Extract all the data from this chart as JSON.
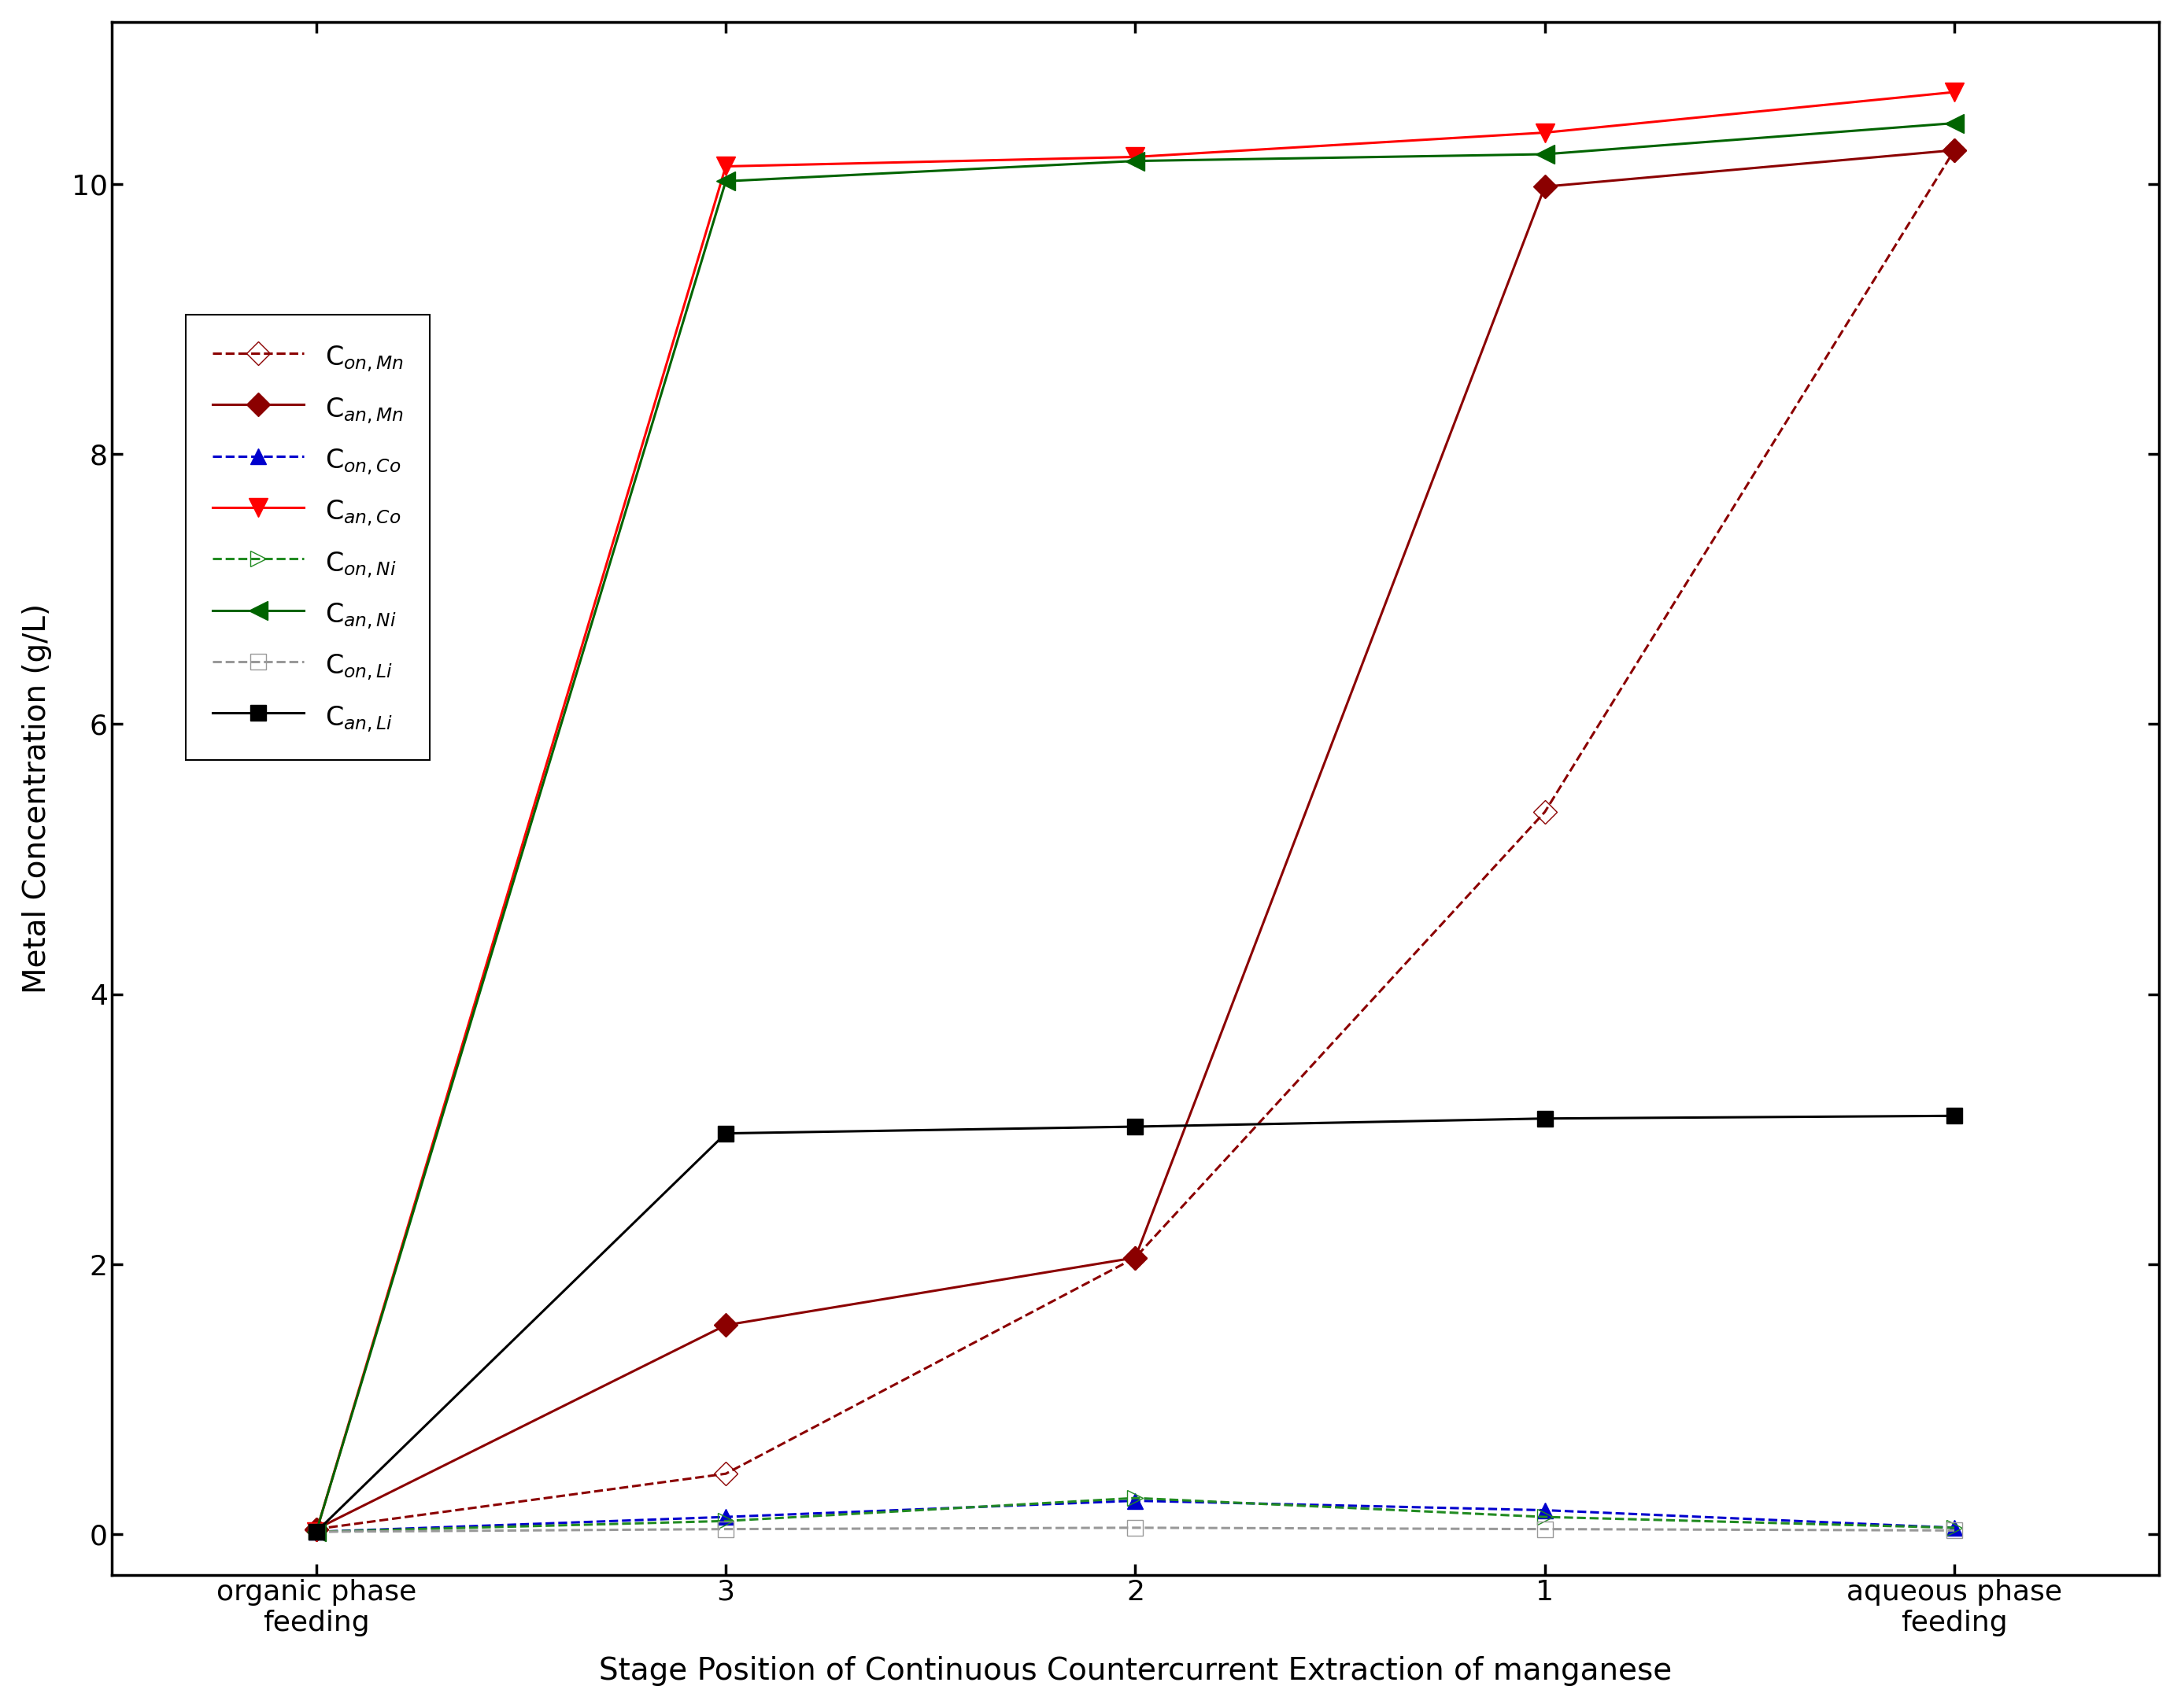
{
  "x_positions": [
    0,
    1,
    2,
    3,
    4
  ],
  "x_labels": [
    "organic phase\nfeeding",
    "3",
    "2",
    "1",
    "aqueous phase\nfeeding"
  ],
  "series": [
    {
      "key": "Con_Mn",
      "label": "C$_{on,Mn}$",
      "color": "#8B0000",
      "linestyle": "dashed",
      "marker": "D",
      "markerfacecolor": "none",
      "markeredgecolor": "#8B0000",
      "markersize": 15,
      "linewidth": 2.2,
      "values": [
        0.04,
        0.45,
        2.05,
        5.35,
        10.25
      ]
    },
    {
      "key": "Can_Mn",
      "label": "C$_{an,Mn}$",
      "color": "#8B0000",
      "linestyle": "solid",
      "marker": "D",
      "markerfacecolor": "#8B0000",
      "markeredgecolor": "#8B0000",
      "markersize": 15,
      "linewidth": 2.2,
      "values": [
        0.04,
        1.55,
        2.05,
        9.98,
        10.25
      ]
    },
    {
      "key": "Con_Co",
      "label": "C$_{on,Co}$",
      "color": "#0000CD",
      "linestyle": "dashed",
      "marker": "^",
      "markerfacecolor": "#0000CD",
      "markeredgecolor": "#0000CD",
      "markersize": 15,
      "linewidth": 2.2,
      "values": [
        0.02,
        0.13,
        0.25,
        0.18,
        0.05
      ]
    },
    {
      "key": "Can_Co",
      "label": "C$_{an,Co}$",
      "color": "#FF0000",
      "linestyle": "solid",
      "marker": "v",
      "markerfacecolor": "#FF0000",
      "markeredgecolor": "#FF0000",
      "markersize": 17,
      "linewidth": 2.2,
      "values": [
        0.02,
        10.13,
        10.2,
        10.38,
        10.68
      ]
    },
    {
      "key": "Con_Ni",
      "label": "C$_{on,Ni}$",
      "color": "#228B22",
      "linestyle": "dashed",
      "marker": ">",
      "markerfacecolor": "none",
      "markeredgecolor": "#228B22",
      "markersize": 15,
      "linewidth": 2.2,
      "values": [
        0.02,
        0.1,
        0.27,
        0.13,
        0.05
      ]
    },
    {
      "key": "Can_Ni",
      "label": "C$_{an,Ni}$",
      "color": "#006400",
      "linestyle": "solid",
      "marker": "<",
      "markerfacecolor": "#006400",
      "markeredgecolor": "#006400",
      "markersize": 17,
      "linewidth": 2.2,
      "values": [
        0.02,
        10.02,
        10.17,
        10.22,
        10.45
      ]
    },
    {
      "key": "Con_Li",
      "label": "C$_{on,Li}$",
      "color": "#999999",
      "linestyle": "dashed",
      "marker": "s",
      "markerfacecolor": "none",
      "markeredgecolor": "#999999",
      "markersize": 14,
      "linewidth": 2.2,
      "values": [
        0.02,
        0.04,
        0.05,
        0.04,
        0.03
      ]
    },
    {
      "key": "Can_Li",
      "label": "C$_{an,Li}$",
      "color": "#000000",
      "linestyle": "solid",
      "marker": "s",
      "markerfacecolor": "#000000",
      "markeredgecolor": "#000000",
      "markersize": 14,
      "linewidth": 2.2,
      "values": [
        0.02,
        2.97,
        3.02,
        3.08,
        3.1
      ]
    }
  ],
  "xlabel": "Stage Position of Continuous Countercurrent Extraction of manganese",
  "ylabel": "Metal Concentration (g/L)",
  "xlim": [
    -0.5,
    4.5
  ],
  "ylim": [
    -0.3,
    11.2
  ],
  "yticks": [
    0,
    2,
    4,
    6,
    8,
    10
  ],
  "label_fontsize": 28,
  "tick_fontsize": 26,
  "legend_fontsize": 24,
  "background_color": "#ffffff",
  "spine_linewidth": 2.5
}
